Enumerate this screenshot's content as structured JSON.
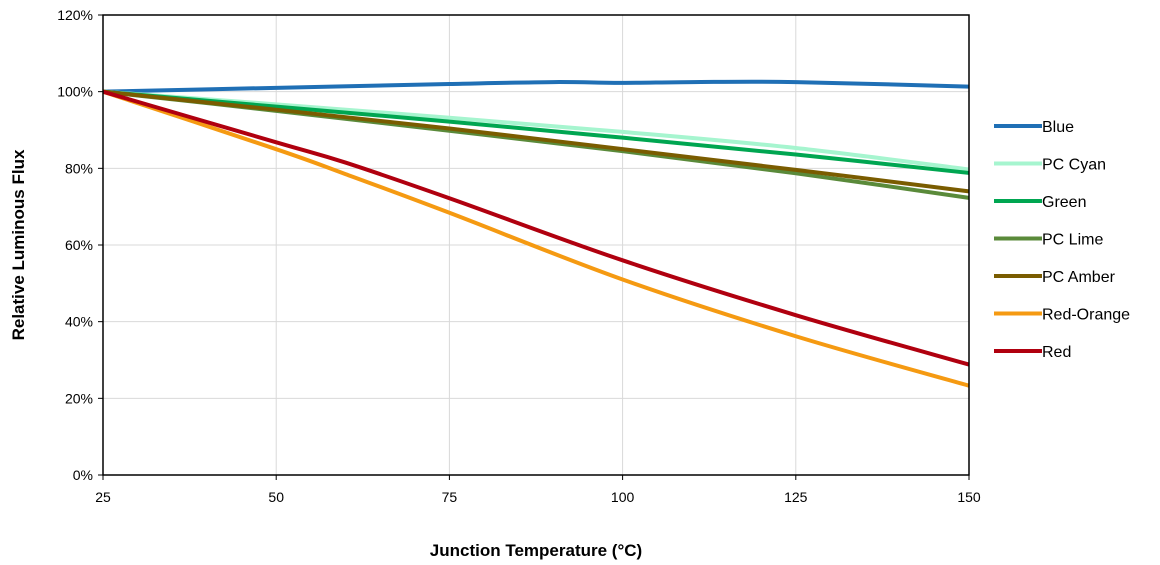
{
  "chart_data": {
    "type": "line",
    "xlabel": "Junction Temperature (°C)",
    "ylabel": "Relative Luminous Flux",
    "xlim": [
      25,
      150
    ],
    "ylim": [
      0,
      120
    ],
    "x_ticks": [
      25,
      50,
      75,
      100,
      125,
      150
    ],
    "y_ticks": [
      0,
      20,
      40,
      60,
      80,
      100,
      120
    ],
    "y_tick_suffix": "%",
    "grid": true,
    "legend_position": "right",
    "series": [
      {
        "name": "Blue",
        "color": "#1f6fb5",
        "x": [
          25,
          50,
          75,
          90,
          100,
          110,
          125,
          150
        ],
        "y": [
          100,
          101,
          102,
          102.5,
          102.3,
          102.5,
          102.5,
          101.3
        ]
      },
      {
        "name": "PC Cyan",
        "color": "#a6f5cf",
        "x": [
          25,
          50,
          75,
          100,
          125,
          150
        ],
        "y": [
          100,
          96.7,
          93.2,
          89.5,
          85.3,
          79.7
        ]
      },
      {
        "name": "Green",
        "color": "#00a651",
        "x": [
          25,
          50,
          75,
          100,
          125,
          150
        ],
        "y": [
          100,
          96.1,
          92.2,
          88.0,
          83.6,
          78.8
        ]
      },
      {
        "name": "PC Lime",
        "color": "#5a8a3a",
        "x": [
          25,
          50,
          75,
          100,
          125,
          150
        ],
        "y": [
          100,
          95.0,
          89.8,
          84.5,
          78.7,
          72.3
        ]
      },
      {
        "name": "PC Amber",
        "color": "#7a5c00",
        "x": [
          25,
          50,
          75,
          100,
          125,
          150
        ],
        "y": [
          100,
          95.3,
          90.4,
          85.0,
          79.6,
          74.0
        ]
      },
      {
        "name": "Red-Orange",
        "color": "#f59a12",
        "x": [
          25,
          50,
          60,
          75,
          100,
          125,
          150
        ],
        "y": [
          100,
          85.0,
          78.5,
          68.4,
          51.0,
          36.2,
          23.3
        ]
      },
      {
        "name": "Red",
        "color": "#b0000f",
        "x": [
          25,
          50,
          60,
          75,
          100,
          125,
          150
        ],
        "y": [
          100,
          86.8,
          81.5,
          72.2,
          56.0,
          41.7,
          28.8
        ]
      }
    ]
  }
}
